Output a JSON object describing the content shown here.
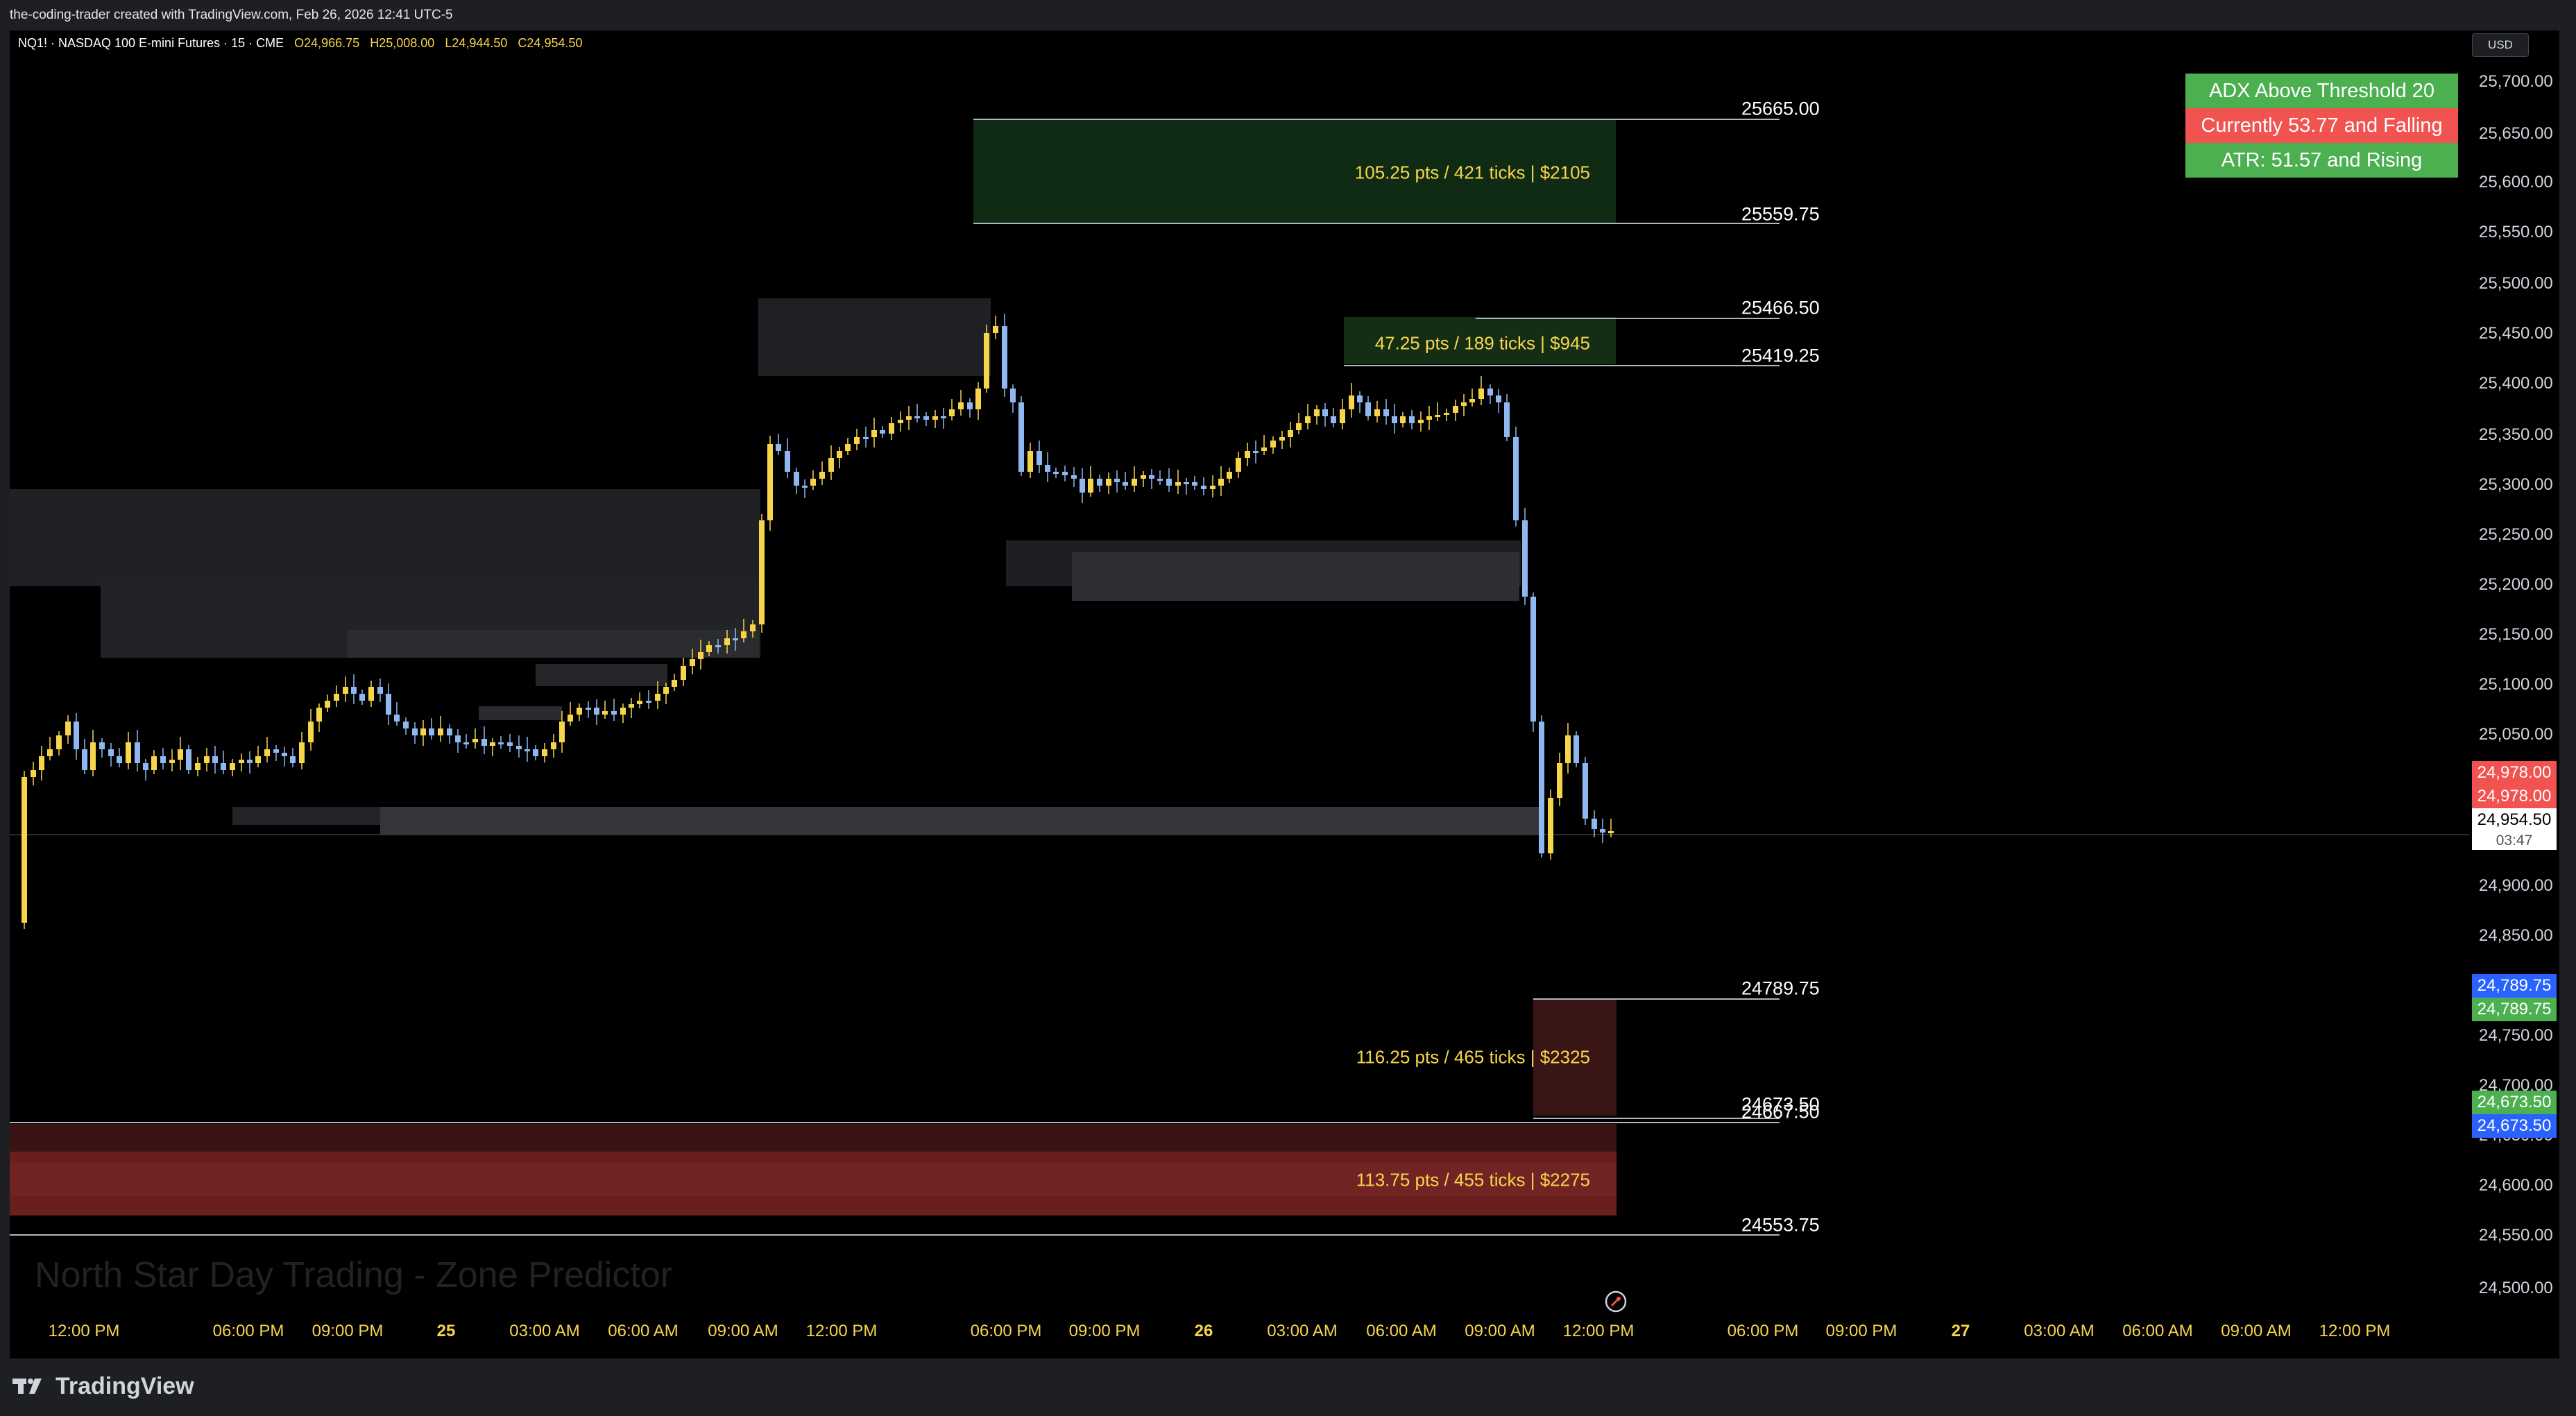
{
  "header": {
    "attribution": "the-coding-trader created with TradingView.com, Feb 26, 2026 12:41 UTC-5"
  },
  "legend": {
    "symbol_text": "NQ1! · NASDAQ 100 E-mini Futures · 15 · CME",
    "open": "O24,966.75",
    "high": "H25,008.00",
    "low": "L24,944.50",
    "close": "C24,954.50"
  },
  "price_axis": {
    "currency": "USD",
    "ticks": [
      "25,700.00",
      "25,650.00",
      "25,600.00",
      "25,550.00",
      "25,500.00",
      "25,450.00",
      "25,400.00",
      "25,350.00",
      "25,300.00",
      "25,250.00",
      "25,200.00",
      "25,150.00",
      "25,100.00",
      "25,050.00",
      "24,900.00",
      "24,850.00",
      "24,800.00",
      "24,750.00",
      "24,700.00",
      "24,650.00",
      "24,600.00",
      "24,550.00",
      "24,500.00"
    ],
    "badges": [
      {
        "text": "24,978.00",
        "color": "#f05350"
      },
      {
        "text": "24,978.00",
        "color": "#f05350"
      },
      {
        "text": "24,954.50",
        "color": "#ffffff",
        "text_color": "#000000"
      },
      {
        "text": "03:47",
        "color": "#ffffff",
        "text_color": "#555555"
      },
      {
        "text": "24,789.75",
        "color": "#2962ff"
      },
      {
        "text": "24,789.75",
        "color": "#4caf50"
      },
      {
        "text": "24,673.50",
        "color": "#4caf50"
      },
      {
        "text": "24,673.50",
        "color": "#2962ff"
      }
    ]
  },
  "time_axis": {
    "labels": [
      {
        "text": "12:00 PM",
        "bold": false
      },
      {
        "text": "06:00 PM",
        "bold": false
      },
      {
        "text": "09:00 PM",
        "bold": false
      },
      {
        "text": "25",
        "bold": true
      },
      {
        "text": "03:00 AM",
        "bold": false
      },
      {
        "text": "06:00 AM",
        "bold": false
      },
      {
        "text": "09:00 AM",
        "bold": false
      },
      {
        "text": "12:00 PM",
        "bold": false
      },
      {
        "text": "06:00 PM",
        "bold": false
      },
      {
        "text": "09:00 PM",
        "bold": false
      },
      {
        "text": "26",
        "bold": true
      },
      {
        "text": "03:00 AM",
        "bold": false
      },
      {
        "text": "06:00 AM",
        "bold": false
      },
      {
        "text": "09:00 AM",
        "bold": false
      },
      {
        "text": "12:00 PM",
        "bold": false
      },
      {
        "text": "06:00 PM",
        "bold": false
      },
      {
        "text": "09:00 PM",
        "bold": false
      },
      {
        "text": "27",
        "bold": true
      },
      {
        "text": "03:00 AM",
        "bold": false
      },
      {
        "text": "06:00 AM",
        "bold": false
      },
      {
        "text": "09:00 AM",
        "bold": false
      },
      {
        "text": "12:00 PM",
        "bold": false
      }
    ]
  },
  "levels": {
    "upper_target": "25665.00",
    "upper_entry": "25559.75",
    "mid_target": "25466.50",
    "mid_entry": "25419.25",
    "lower_entry": "24789.75",
    "lower_target_a": "24673.50",
    "lower_target_b": "24667.50",
    "bottom_target": "24553.75"
  },
  "zones": {
    "upper": "105.25 pts / 421 ticks | $2105",
    "mid": "47.25 pts / 189 ticks | $945",
    "lower": "116.25 pts / 465 ticks | $2325",
    "bottom": "113.75 pts / 455 ticks | $2275"
  },
  "info_table": [
    {
      "text": "ADX Above Threshold 20",
      "color": "#4caf50"
    },
    {
      "text": "Currently 53.77 and Falling",
      "color": "#f05350"
    },
    {
      "text": "ATR: 51.57 and Rising",
      "color": "#4caf50"
    }
  ],
  "watermark": "North Star Day Trading - Zone Predictor",
  "branding": "TradingView",
  "colors": {
    "bull": "#f7d54a",
    "bear": "#8fb8f0",
    "green_zone": "#0f2d14",
    "red_zone": "#6e1f1f",
    "gray_zone": "#2a2b2f"
  }
}
